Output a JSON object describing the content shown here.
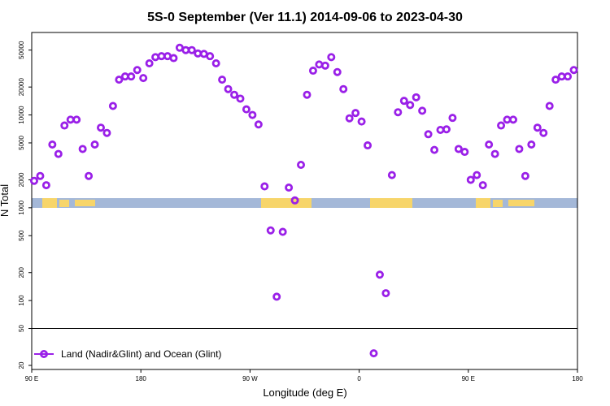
{
  "chart_data": {
    "type": "scatter",
    "title": "5S-0 September (Ver 11.1)   2014-09-06 to 2023-04-30",
    "xlabel": "Longitude (deg E)",
    "ylabel": "N Total",
    "y_scale": "log",
    "ylim": [
      20,
      70000
    ],
    "x_ticks": [
      {
        "pos": 0,
        "label": "90 E"
      },
      {
        "pos": 90,
        "label": "180"
      },
      {
        "pos": 180,
        "label": "90 W"
      },
      {
        "pos": 270,
        "label": "0"
      },
      {
        "pos": 360,
        "label": "90 E"
      },
      {
        "pos": 450,
        "label": "180"
      }
    ],
    "y_ticks": [
      20,
      50,
      100,
      200,
      500,
      1000,
      2000,
      5000,
      10000,
      20000,
      50000
    ],
    "reference_line": 50,
    "band_value": 1100,
    "legend": {
      "label": "Land (Nadir&Glint) and Ocean (Glint)",
      "position": "bottom-left"
    },
    "colors": {
      "series": "#9a20e8",
      "ocean_band": "#a4b8d8",
      "land_band": "#f7d56a"
    },
    "series": [
      {
        "name": "Land (Nadir&Glint) and Ocean (Glint)",
        "points": [
          [
            2,
            1950
          ],
          [
            7,
            2200
          ],
          [
            12,
            1750
          ],
          [
            17,
            4800
          ],
          [
            22,
            3800
          ],
          [
            27,
            7700
          ],
          [
            32,
            8900
          ],
          [
            37,
            8900
          ],
          [
            42,
            4300
          ],
          [
            47,
            2200
          ],
          [
            52,
            4800
          ],
          [
            57,
            7300
          ],
          [
            62,
            6400
          ],
          [
            67,
            12500
          ],
          [
            72,
            24000
          ],
          [
            77,
            26000
          ],
          [
            82,
            26000
          ],
          [
            87,
            30500
          ],
          [
            92,
            25000
          ],
          [
            97,
            36000
          ],
          [
            102,
            42000
          ],
          [
            107,
            43000
          ],
          [
            112,
            43000
          ],
          [
            117,
            41000
          ],
          [
            122,
            53000
          ],
          [
            127,
            50000
          ],
          [
            132,
            50000
          ],
          [
            137,
            46000
          ],
          [
            142,
            45500
          ],
          [
            147,
            43000
          ],
          [
            152,
            36000
          ],
          [
            157,
            24000
          ],
          [
            162,
            19000
          ],
          [
            167,
            16500
          ],
          [
            172,
            15000
          ],
          [
            177,
            11500
          ],
          [
            182,
            10000
          ],
          [
            187,
            7900
          ],
          [
            192,
            1700
          ],
          [
            197,
            570
          ],
          [
            202,
            110
          ],
          [
            207,
            550
          ],
          [
            212,
            1650
          ],
          [
            217,
            1200
          ],
          [
            222,
            2900
          ],
          [
            227,
            16500
          ],
          [
            232,
            30000
          ],
          [
            237,
            35000
          ],
          [
            242,
            34000
          ],
          [
            247,
            42000
          ],
          [
            252,
            29000
          ],
          [
            257,
            19000
          ],
          [
            262,
            9200
          ],
          [
            267,
            10500
          ],
          [
            272,
            8500
          ],
          [
            277,
            4700
          ],
          [
            282,
            27
          ],
          [
            287,
            190
          ],
          [
            292,
            120
          ],
          [
            297,
            2250
          ],
          [
            302,
            10700
          ],
          [
            307,
            14200
          ],
          [
            312,
            12800
          ],
          [
            317,
            15500
          ],
          [
            322,
            11100
          ],
          [
            327,
            6200
          ],
          [
            332,
            4200
          ],
          [
            337,
            6900
          ],
          [
            342,
            7000
          ],
          [
            347,
            9300
          ],
          [
            352,
            4300
          ],
          [
            357,
            4000
          ],
          [
            362,
            2000
          ],
          [
            367,
            2250
          ],
          [
            372,
            1750
          ],
          [
            377,
            4800
          ],
          [
            382,
            3800
          ],
          [
            387,
            7700
          ],
          [
            392,
            8900
          ],
          [
            397,
            8900
          ],
          [
            402,
            4300
          ],
          [
            407,
            2200
          ],
          [
            412,
            4800
          ],
          [
            417,
            7300
          ],
          [
            422,
            6400
          ],
          [
            427,
            12500
          ],
          [
            432,
            24000
          ],
          [
            437,
            26000
          ],
          [
            442,
            26000
          ],
          [
            447,
            30500
          ]
        ]
      }
    ]
  }
}
